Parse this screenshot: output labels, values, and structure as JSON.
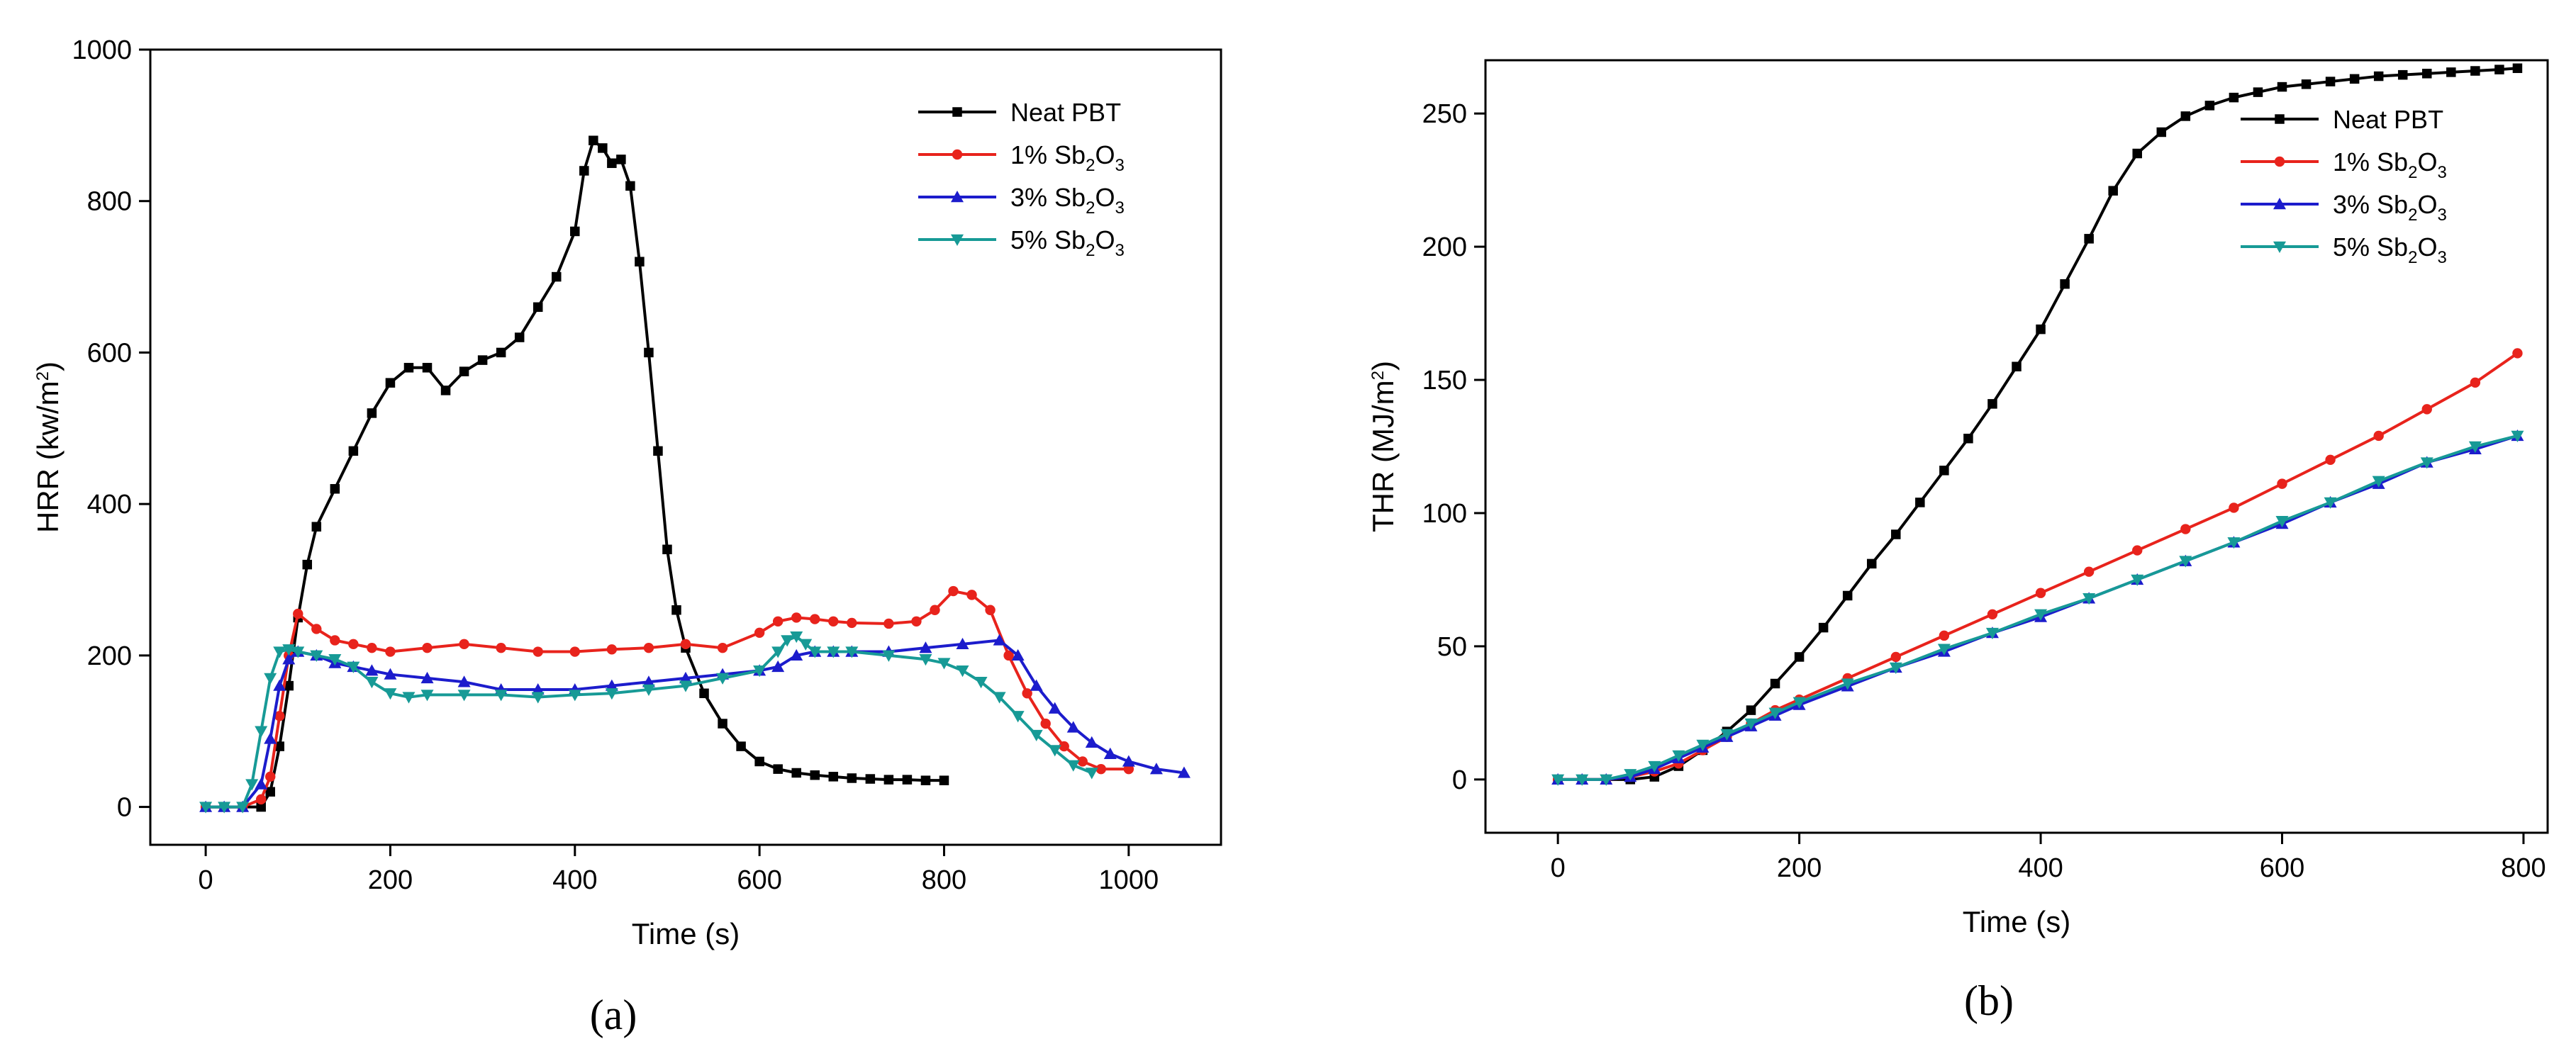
{
  "chart_data": [
    {
      "type": "line",
      "panel_label": "(a)",
      "xlabel": "Time (s)",
      "ylabel": "HRR (kw/m2)",
      "ylabel_parts": [
        "HRR (kw/m",
        "2",
        ")"
      ],
      "xlim": [
        -60,
        1100
      ],
      "ylim": [
        -50,
        1000
      ],
      "xticks": [
        0,
        200,
        400,
        600,
        800,
        1000
      ],
      "yticks": [
        0,
        200,
        400,
        600,
        800,
        1000
      ],
      "legend_position": "top-right",
      "series": [
        {
          "name": "Neat PBT",
          "label": [
            "Neat PBT"
          ],
          "color": "#000000",
          "marker": "square",
          "x": [
            0,
            20,
            40,
            60,
            70,
            80,
            90,
            100,
            110,
            120,
            140,
            160,
            180,
            200,
            220,
            240,
            260,
            280,
            300,
            320,
            340,
            360,
            380,
            400,
            410,
            420,
            430,
            440,
            450,
            460,
            470,
            480,
            490,
            500,
            510,
            520,
            540,
            560,
            580,
            600,
            620,
            640,
            660,
            680,
            700,
            720,
            740,
            760,
            780,
            800
          ],
          "y": [
            0,
            0,
            0,
            0,
            20,
            80,
            160,
            250,
            320,
            370,
            420,
            470,
            520,
            560,
            580,
            580,
            550,
            575,
            590,
            600,
            620,
            660,
            700,
            760,
            840,
            880,
            870,
            850,
            855,
            820,
            720,
            600,
            470,
            340,
            260,
            210,
            150,
            110,
            80,
            60,
            50,
            45,
            42,
            40,
            38,
            37,
            36,
            36,
            35,
            35
          ]
        },
        {
          "name": "1% Sb2O3",
          "label": [
            "1% Sb",
            "2",
            "O",
            "3"
          ],
          "color": "#e8231c",
          "marker": "circle",
          "x": [
            0,
            20,
            40,
            60,
            70,
            80,
            90,
            100,
            120,
            140,
            160,
            180,
            200,
            240,
            280,
            320,
            360,
            400,
            440,
            480,
            520,
            560,
            600,
            620,
            640,
            660,
            680,
            700,
            740,
            770,
            790,
            810,
            830,
            850,
            870,
            890,
            910,
            930,
            950,
            970,
            1000
          ],
          "y": [
            0,
            0,
            0,
            10,
            40,
            120,
            200,
            255,
            235,
            220,
            215,
            210,
            205,
            210,
            215,
            210,
            205,
            205,
            208,
            210,
            215,
            210,
            230,
            245,
            250,
            248,
            245,
            243,
            242,
            245,
            260,
            285,
            280,
            260,
            200,
            150,
            110,
            80,
            60,
            50,
            50
          ]
        },
        {
          "name": "3% Sb2O3",
          "label": [
            "3% Sb",
            "2",
            "O",
            "3"
          ],
          "color": "#1c1ccc",
          "marker": "triangle",
          "x": [
            0,
            20,
            40,
            60,
            70,
            80,
            90,
            100,
            120,
            140,
            160,
            180,
            200,
            240,
            280,
            320,
            360,
            400,
            440,
            480,
            520,
            560,
            600,
            620,
            640,
            660,
            680,
            700,
            740,
            780,
            820,
            860,
            880,
            900,
            920,
            940,
            960,
            980,
            1000,
            1030,
            1060
          ],
          "y": [
            0,
            0,
            0,
            30,
            90,
            160,
            195,
            205,
            200,
            190,
            185,
            180,
            175,
            170,
            165,
            155,
            155,
            155,
            160,
            165,
            170,
            175,
            180,
            185,
            200,
            205,
            205,
            205,
            205,
            210,
            215,
            220,
            200,
            160,
            130,
            105,
            85,
            70,
            60,
            50,
            45
          ]
        },
        {
          "name": "5% Sb2O3",
          "label": [
            "5% Sb",
            "2",
            "O",
            "3"
          ],
          "color": "#179a96",
          "marker": "inv-triangle",
          "x": [
            0,
            20,
            40,
            50,
            60,
            70,
            80,
            90,
            100,
            120,
            140,
            160,
            180,
            200,
            220,
            240,
            280,
            320,
            360,
            400,
            440,
            480,
            520,
            560,
            600,
            620,
            630,
            640,
            650,
            660,
            680,
            700,
            740,
            780,
            800,
            820,
            840,
            860,
            880,
            900,
            920,
            940,
            960
          ],
          "y": [
            0,
            0,
            0,
            30,
            100,
            170,
            205,
            208,
            205,
            200,
            195,
            185,
            165,
            150,
            145,
            148,
            148,
            148,
            145,
            148,
            150,
            155,
            160,
            170,
            180,
            205,
            220,
            225,
            215,
            205,
            205,
            205,
            200,
            195,
            190,
            180,
            165,
            145,
            120,
            95,
            75,
            55,
            45
          ]
        }
      ]
    },
    {
      "type": "line",
      "panel_label": "(b)",
      "xlabel": "Time (s)",
      "ylabel": "THR (MJ/m2)",
      "ylabel_parts": [
        "THR (MJ/m",
        "2",
        ")"
      ],
      "xlim": [
        -60,
        820
      ],
      "ylim": [
        -20,
        270
      ],
      "xticks": [
        0,
        200,
        400,
        600,
        800
      ],
      "yticks": [
        0,
        50,
        100,
        150,
        200,
        250
      ],
      "legend_position": "top-right",
      "series": [
        {
          "name": "Neat PBT",
          "label": [
            "Neat PBT"
          ],
          "color": "#000000",
          "marker": "square",
          "x": [
            0,
            20,
            40,
            60,
            80,
            100,
            120,
            140,
            160,
            180,
            200,
            220,
            240,
            260,
            280,
            300,
            320,
            340,
            360,
            380,
            400,
            420,
            440,
            460,
            480,
            500,
            520,
            540,
            560,
            580,
            600,
            620,
            640,
            660,
            680,
            700,
            720,
            740,
            760,
            780,
            795
          ],
          "y": [
            0,
            0,
            0,
            0,
            1,
            5,
            11,
            18,
            26,
            36,
            46,
            57,
            69,
            81,
            92,
            104,
            116,
            128,
            141,
            155,
            169,
            186,
            203,
            221,
            235,
            243,
            249,
            253,
            256,
            258,
            260,
            261,
            262,
            263,
            264,
            264.5,
            265,
            265.5,
            266,
            266.5,
            267
          ]
        },
        {
          "name": "1% Sb2O3",
          "label": [
            "1% Sb",
            "2",
            "O",
            "3"
          ],
          "color": "#e8231c",
          "marker": "circle",
          "x": [
            0,
            20,
            40,
            60,
            80,
            100,
            120,
            140,
            160,
            180,
            200,
            240,
            280,
            320,
            360,
            400,
            440,
            480,
            520,
            560,
            600,
            640,
            680,
            720,
            760,
            795
          ],
          "y": [
            0,
            0,
            0,
            1,
            3,
            6,
            11,
            16,
            21,
            26,
            30,
            38,
            46,
            54,
            62,
            70,
            78,
            86,
            94,
            102,
            111,
            120,
            129,
            139,
            149,
            160
          ]
        },
        {
          "name": "3% Sb2O3",
          "label": [
            "3% Sb",
            "2",
            "O",
            "3"
          ],
          "color": "#1c1ccc",
          "marker": "triangle",
          "x": [
            0,
            20,
            40,
            60,
            80,
            100,
            120,
            140,
            160,
            180,
            200,
            240,
            280,
            320,
            360,
            400,
            440,
            480,
            520,
            560,
            600,
            640,
            680,
            720,
            760,
            795
          ],
          "y": [
            0,
            0,
            0,
            1,
            4,
            8,
            12,
            16,
            20,
            24,
            28,
            35,
            42,
            48,
            55,
            61,
            68,
            75,
            82,
            89,
            96,
            104,
            111,
            119,
            124,
            129
          ]
        },
        {
          "name": "5% Sb2O3",
          "label": [
            "5% Sb",
            "2",
            "O",
            "3"
          ],
          "color": "#179a96",
          "marker": "inv-triangle",
          "x": [
            0,
            20,
            40,
            60,
            80,
            100,
            120,
            140,
            160,
            180,
            200,
            240,
            280,
            320,
            360,
            400,
            440,
            480,
            520,
            560,
            600,
            640,
            680,
            720,
            760,
            795
          ],
          "y": [
            0,
            0,
            0,
            2,
            5,
            9,
            13,
            17,
            21,
            25,
            29,
            36,
            42,
            49,
            55,
            62,
            68,
            75,
            82,
            89,
            97,
            104,
            112,
            119,
            125,
            129
          ]
        }
      ]
    }
  ]
}
